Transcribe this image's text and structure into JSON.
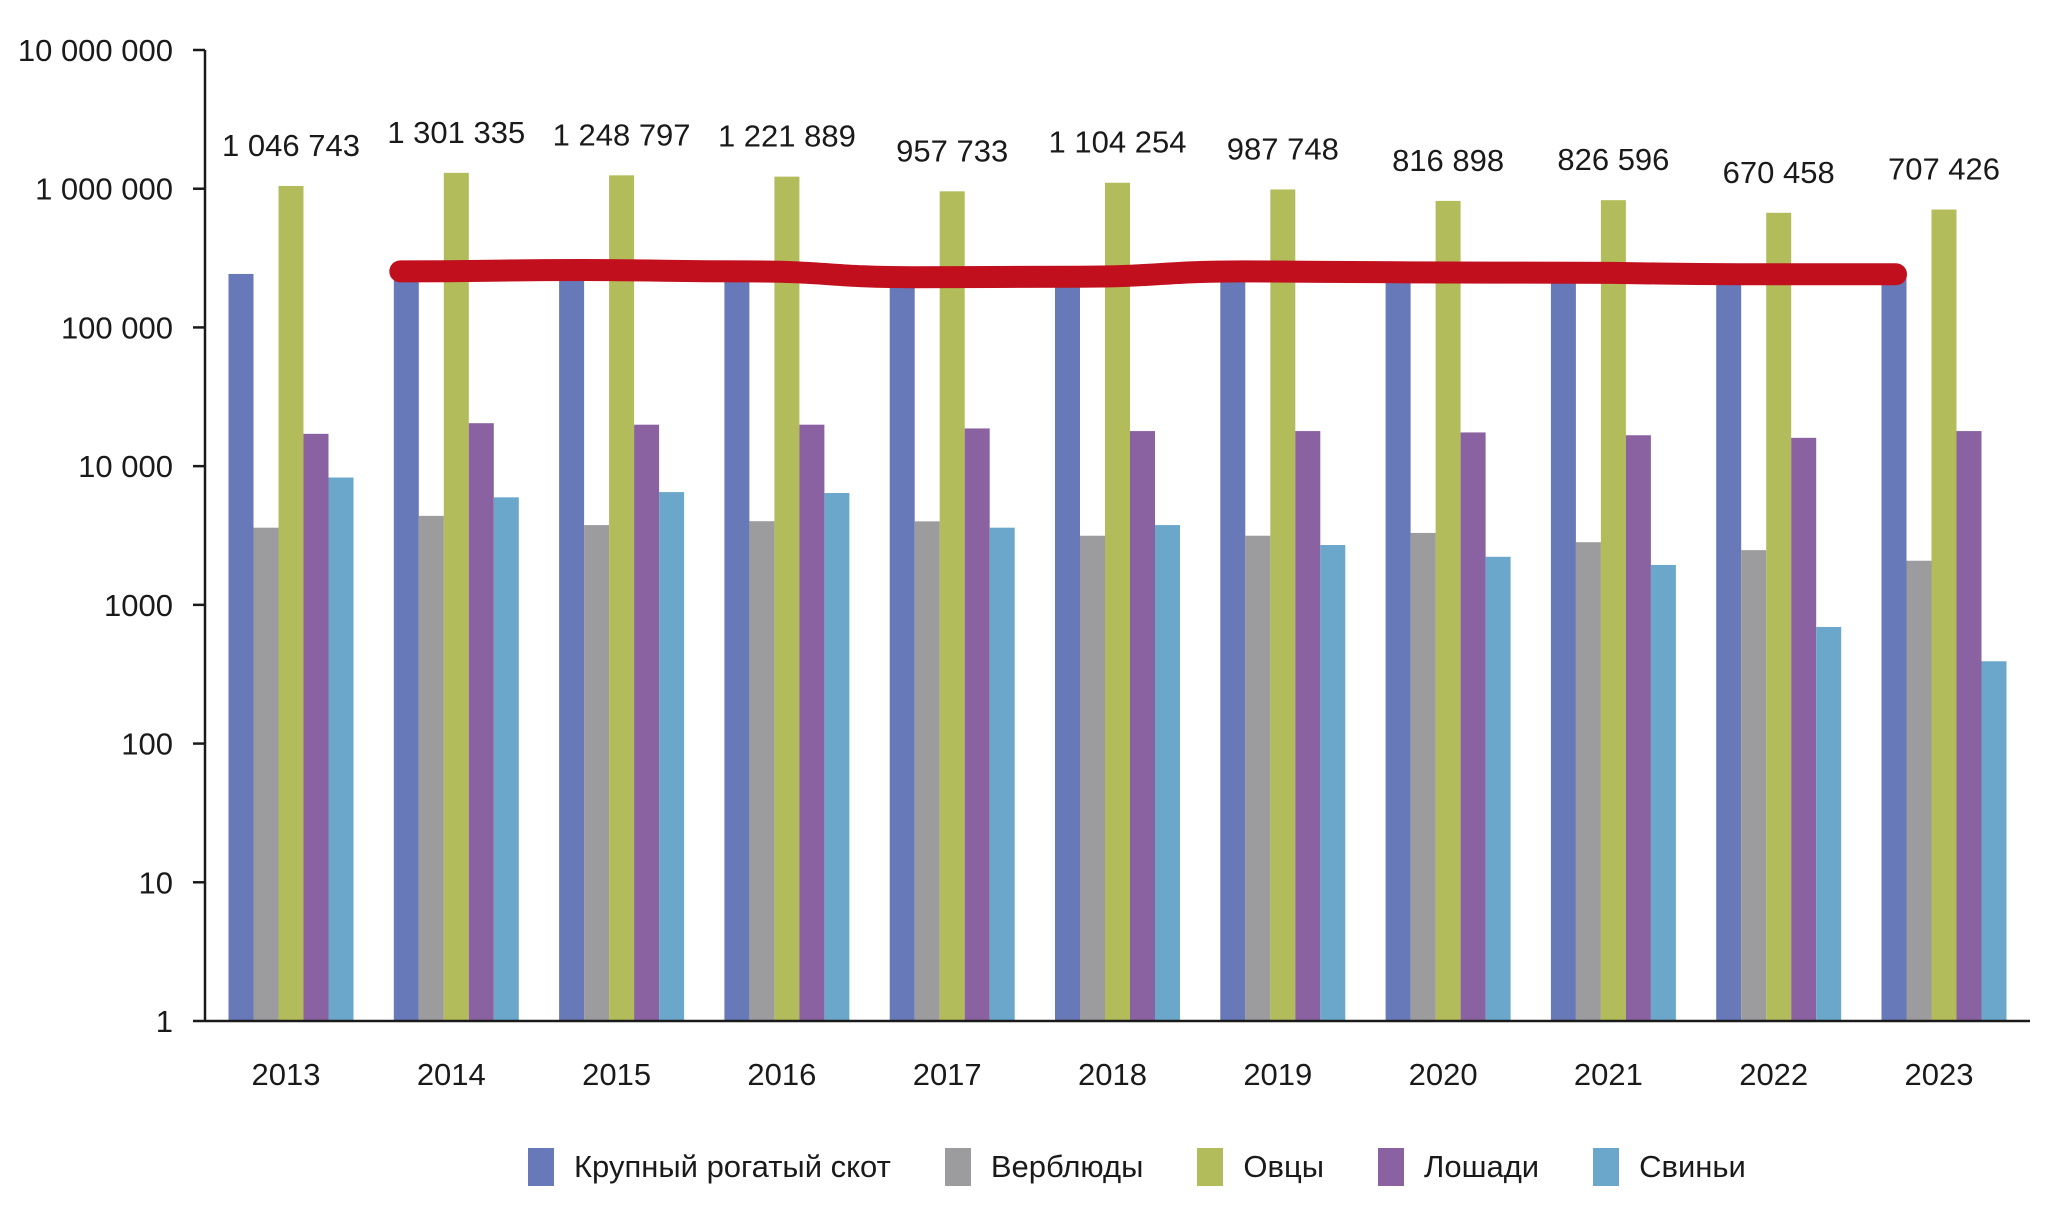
{
  "chart_data": {
    "type": "bar",
    "title": "",
    "xlabel": "",
    "ylabel": "",
    "yscale": "log",
    "ylim": [
      1,
      10000000
    ],
    "grid": false,
    "legend_position": "bottom",
    "y_ticks": [
      {
        "value": 10000000,
        "label": "10 000 000"
      },
      {
        "value": 1000000,
        "label": "1 000 000"
      },
      {
        "value": 100000,
        "label": "100 000"
      },
      {
        "value": 10000,
        "label": "10 000"
      },
      {
        "value": 1000,
        "label": "1000"
      },
      {
        "value": 100,
        "label": "100"
      },
      {
        "value": 10,
        "label": "10"
      },
      {
        "value": 1,
        "label": "1"
      }
    ],
    "categories": [
      "2013",
      "2014",
      "2015",
      "2016",
      "2017",
      "2018",
      "2019",
      "2020",
      "2021",
      "2022",
      "2023"
    ],
    "series": [
      {
        "name": "Крупный рогатый скот",
        "color": "#6779B8",
        "values": [
          243000,
          262000,
          268000,
          262000,
          238000,
          240000,
          262000,
          258000,
          256000,
          250000,
          250000
        ]
      },
      {
        "name": "Верблюды",
        "color": "#9C9B9D",
        "values": [
          3600,
          4380,
          3760,
          4010,
          4000,
          3150,
          3150,
          3300,
          2830,
          2480,
          2080
        ]
      },
      {
        "name": "Овцы",
        "color": "#B2BC5A",
        "values": [
          1046743,
          1301335,
          1248797,
          1221889,
          957733,
          1104254,
          987748,
          816898,
          826596,
          670458,
          707426
        ]
      },
      {
        "name": "Лошади",
        "color": "#8A62A1",
        "values": [
          17100,
          20400,
          19900,
          19900,
          18700,
          17900,
          17900,
          17500,
          16700,
          16000,
          17900
        ]
      },
      {
        "name": "Свиньи",
        "color": "#6AA7CB",
        "values": [
          8280,
          5960,
          6500,
          6400,
          3600,
          3760,
          2700,
          2220,
          1940,
          693,
          392
        ]
      }
    ],
    "data_labels": {
      "series": "Овцы",
      "labels": [
        "1 046 743",
        "1 301 335",
        "1 248 797",
        "1 221 889",
        "957 733",
        "1 104 254",
        "987 748",
        "816 898",
        "826 596",
        "670 458",
        "707 426"
      ]
    },
    "annotation_line": {
      "description": "red hand-drawn trend line over cattle bars",
      "color": "#C10F1D",
      "from_category": "2014",
      "to_category": "2023",
      "values": [
        262000,
        268000,
        262000,
        238000,
        240000,
        262000,
        258000,
        256000,
        250000,
        250000
      ]
    }
  }
}
